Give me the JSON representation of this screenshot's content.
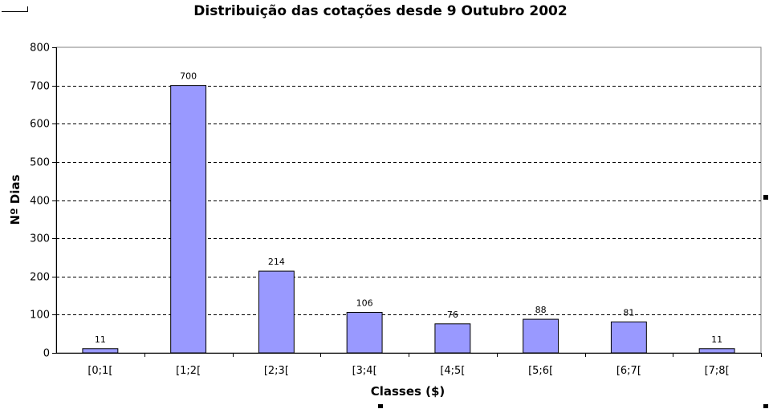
{
  "chart_data": {
    "type": "bar",
    "title": "Distribuição das cotações desde 9 Outubro 2002",
    "xlabel": "Classes ($)",
    "ylabel": "Nº Dias",
    "categories": [
      "[0;1[",
      "[1;2[",
      "[2;3[",
      "[3;4[",
      "[4;5[",
      "[5;6[",
      "[6;7[",
      "[7;8["
    ],
    "values": [
      11,
      700,
      214,
      106,
      76,
      88,
      81,
      11
    ],
    "data_labels": [
      "11",
      "700",
      "214",
      "106",
      "76",
      "88",
      "81",
      "11"
    ],
    "ylim": [
      0,
      800
    ],
    "yticks": [
      0,
      100,
      200,
      300,
      400,
      500,
      600,
      700,
      800
    ],
    "grid": true,
    "bar_color": "#9999ff",
    "bar_edge_color": "#000000",
    "grid_color": "#000000"
  }
}
